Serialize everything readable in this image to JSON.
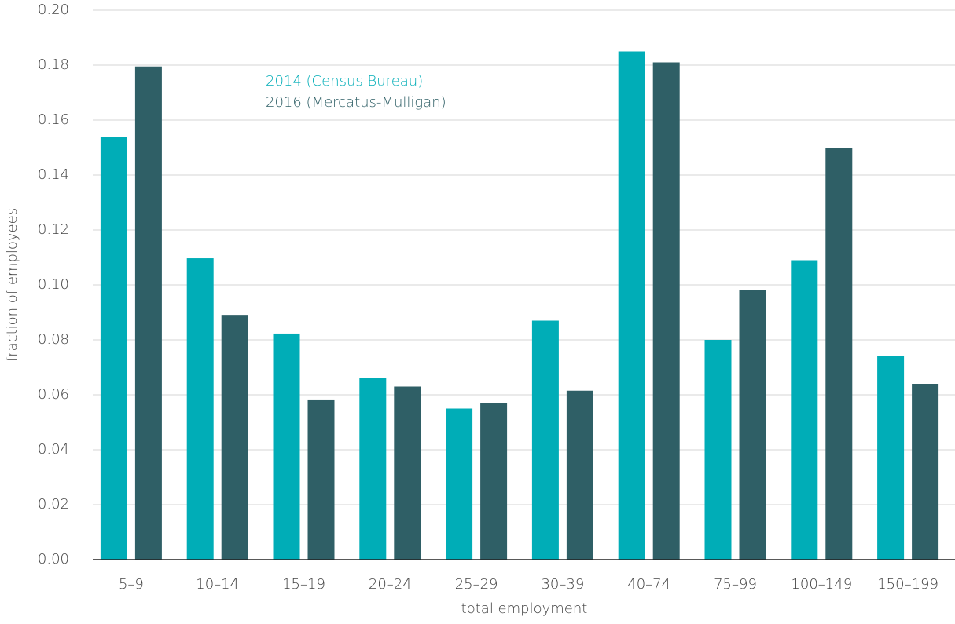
{
  "chart_data": {
    "type": "bar",
    "x_label": "total employment",
    "y_label": "fraction of employees",
    "categories": [
      "5–9",
      "10–14",
      "15–19",
      "20–24",
      "25–29",
      "30–39",
      "40–74",
      "75–99",
      "100–149",
      "150–199"
    ],
    "series": [
      {
        "name": "2014 (Census Bureau)",
        "color": "#00adb7",
        "values": [
          0.154,
          0.1097,
          0.0823,
          0.066,
          0.055,
          0.087,
          0.185,
          0.08,
          0.109,
          0.074
        ]
      },
      {
        "name": "2016 (Mercatus-Mulligan)",
        "color": "#2f5f66",
        "values": [
          0.1795,
          0.0891,
          0.0583,
          0.063,
          0.057,
          0.0615,
          0.181,
          0.098,
          0.15,
          0.064
        ]
      }
    ],
    "ylim": [
      0,
      0.2
    ],
    "yticks": [
      {
        "value": 0,
        "label": "0.00"
      },
      {
        "value": 0.02,
        "label": "0.02"
      },
      {
        "value": 0.04,
        "label": "0.04"
      },
      {
        "value": 0.06,
        "label": "0.06"
      },
      {
        "value": 0.08,
        "label": "0.08"
      },
      {
        "value": 0.1,
        "label": "0.10"
      },
      {
        "value": 0.12,
        "label": "0.12"
      },
      {
        "value": 0.14,
        "label": "0.14"
      },
      {
        "value": 0.16,
        "label": "0.16"
      },
      {
        "value": 0.18,
        "label": "0.18"
      },
      {
        "value": 0.2,
        "label": "0.20"
      }
    ],
    "grid": true
  }
}
